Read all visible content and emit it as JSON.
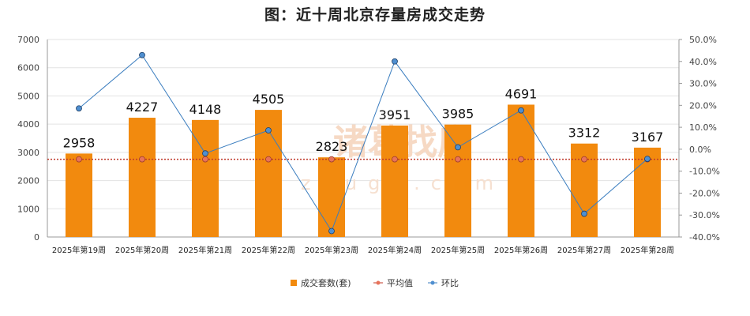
{
  "watermark": {
    "main": "诸葛找房",
    "sub": "zhuge.com"
  },
  "chart_data": {
    "type": "bar",
    "title": "图：近十周北京存量房成交走势",
    "categories": [
      "2025年第19周",
      "2025年第20周",
      "2025年第21周",
      "2025年第22周",
      "2025年第23周",
      "2025年第24周",
      "2025年第25周",
      "2025年第26周",
      "2025年第27周",
      "2025年第28周"
    ],
    "series": [
      {
        "name": "成交套数(套)",
        "type": "bar",
        "axis": "left",
        "color": "#f28a0e",
        "values": [
          2958,
          4227,
          4148,
          4505,
          2823,
          3951,
          3985,
          4691,
          3312,
          3167
        ]
      },
      {
        "name": "平均值",
        "type": "line",
        "axis": "left",
        "color": "#c0392b",
        "values": [
          2755,
          2755,
          2755,
          2755,
          2755,
          2755,
          2755,
          2755,
          2755,
          2755
        ]
      },
      {
        "name": "环比",
        "type": "line",
        "axis": "right",
        "color": "#3a7dbf",
        "values": [
          18.6,
          42.9,
          -1.9,
          8.6,
          -37.3,
          40.0,
          0.9,
          17.7,
          -29.4,
          -4.4
        ]
      }
    ],
    "y_left": {
      "min": 0,
      "max": 7000,
      "step": 1000,
      "ticks": [
        "0",
        "1000",
        "2000",
        "3000",
        "4000",
        "5000",
        "6000",
        "7000"
      ]
    },
    "y_right": {
      "min": -40,
      "max": 50,
      "step": 10,
      "ticks": [
        "-40.0%",
        "-30.0%",
        "-20.0%",
        "-10.0%",
        "0.0%",
        "10.0%",
        "20.0%",
        "30.0%",
        "40.0%",
        "50.0%"
      ]
    },
    "grid": true,
    "legend_position": "bottom"
  }
}
